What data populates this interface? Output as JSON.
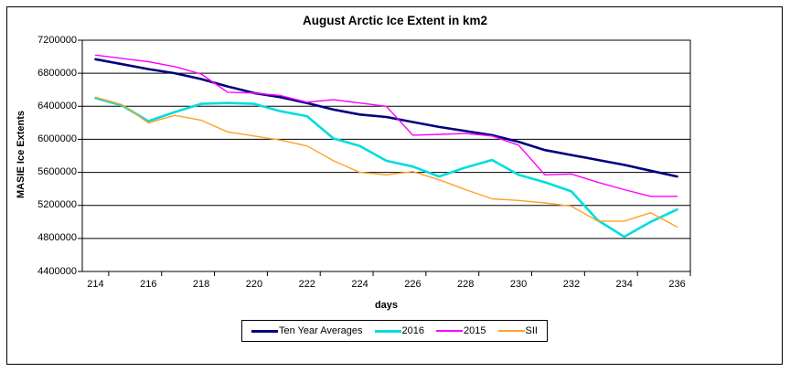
{
  "title": "August Arctic Ice Extent in km2",
  "y_axis_label": "MASIE Ice Extents",
  "x_axis_label": "days",
  "chart_data": {
    "type": "line",
    "title": "August Arctic Ice Extent in km2",
    "xlabel": "days",
    "ylabel": "MASIE Ice Extents",
    "x": [
      214,
      215,
      216,
      217,
      218,
      219,
      220,
      221,
      222,
      223,
      224,
      225,
      226,
      227,
      228,
      229,
      230,
      231,
      232,
      233,
      234,
      235,
      236
    ],
    "x_tick_labels": [
      "214",
      "216",
      "218",
      "220",
      "222",
      "224",
      "226",
      "228",
      "230",
      "232",
      "234",
      "236"
    ],
    "y_ticks": [
      4400000,
      4800000,
      5200000,
      5600000,
      6000000,
      6400000,
      6800000,
      7200000
    ],
    "y_tick_labels": [
      "4400000",
      "4800000",
      "5200000",
      "5600000",
      "6000000",
      "6400000",
      "6800000",
      "7200000"
    ],
    "ylim": [
      4400000,
      7200000
    ],
    "grid": "horizontal",
    "legend_position": "bottom-center",
    "series": [
      {
        "name": "Ten Year Averages",
        "color": "#000080",
        "line_width": 2.6,
        "values": [
          6970000,
          6910000,
          6850000,
          6800000,
          6730000,
          6640000,
          6560000,
          6510000,
          6440000,
          6360000,
          6300000,
          6270000,
          6210000,
          6150000,
          6100000,
          6050000,
          5970000,
          5870000,
          5810000,
          5750000,
          5690000,
          5620000,
          5550000
        ]
      },
      {
        "name": "2016",
        "color": "#00DDDD",
        "line_width": 2.6,
        "values": [
          6500000,
          6410000,
          6220000,
          6330000,
          6430000,
          6440000,
          6430000,
          6340000,
          6280000,
          6010000,
          5920000,
          5740000,
          5670000,
          5550000,
          5660000,
          5750000,
          5570000,
          5480000,
          5370000,
          5020000,
          4820000,
          5000000,
          5150000
        ]
      },
      {
        "name": "2015",
        "color": "#FF00FF",
        "line_width": 1.4,
        "values": [
          7020000,
          6980000,
          6940000,
          6880000,
          6790000,
          6570000,
          6560000,
          6530000,
          6450000,
          6480000,
          6440000,
          6400000,
          6050000,
          6060000,
          6070000,
          6040000,
          5930000,
          5570000,
          5580000,
          5480000,
          5390000,
          5310000,
          5310000
        ]
      },
      {
        "name": "SII",
        "color": "#FFA226",
        "line_width": 1.4,
        "values": [
          6510000,
          6420000,
          6200000,
          6290000,
          6230000,
          6090000,
          6040000,
          5990000,
          5920000,
          5740000,
          5600000,
          5570000,
          5610000,
          5510000,
          5390000,
          5280000,
          5260000,
          5230000,
          5190000,
          5010000,
          5010000,
          5110000,
          4940000
        ]
      }
    ]
  }
}
